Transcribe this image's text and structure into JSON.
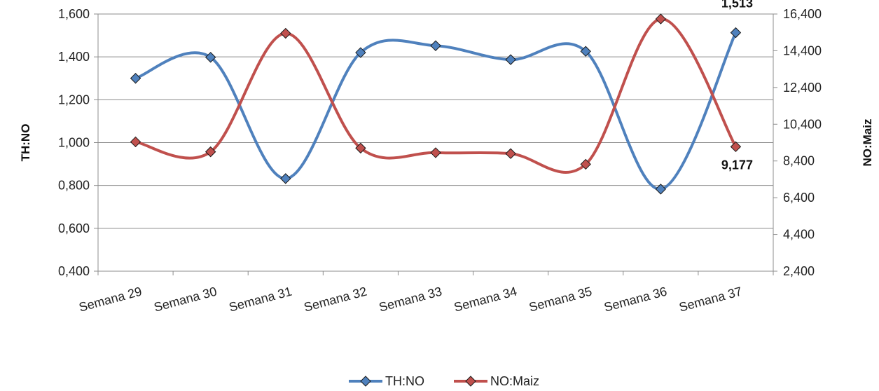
{
  "chart_data": {
    "type": "line",
    "categories": [
      "Semana 29",
      "Semana 30",
      "Semana 31",
      "Semana 32",
      "Semana 33",
      "Semana 34",
      "Semana 35",
      "Semana 36",
      "Semana 37"
    ],
    "series": [
      {
        "name": "TH:NO",
        "axis": "left",
        "color": "#4f81bd",
        "marker_fill": "#4f81bd",
        "values": [
          1.3,
          1.398,
          0.832,
          1.42,
          1.452,
          1.387,
          1.426,
          0.783,
          1.513
        ]
      },
      {
        "name": "NO:Maiz",
        "axis": "right",
        "color": "#c0504d",
        "marker_fill": "#c0504d",
        "values": [
          9440,
          8900,
          15350,
          9100,
          8850,
          8800,
          8220,
          16130,
          9177
        ]
      }
    ],
    "y_left": {
      "label": "TH:NO",
      "min": 0.4,
      "max": 1.6,
      "ticks": [
        "0,400",
        "0,600",
        "0,800",
        "1,000",
        "1,200",
        "1,400",
        "1,600"
      ]
    },
    "y_right": {
      "label": "NO:Maiz",
      "min": 2400,
      "max": 16400,
      "ticks": [
        "2,400",
        "4,400",
        "6,400",
        "8,400",
        "10,400",
        "12,400",
        "14,400",
        "16,400"
      ]
    },
    "data_labels": [
      {
        "series": "TH:NO",
        "index": 8,
        "text": "1,513"
      },
      {
        "series": "NO:Maiz",
        "index": 8,
        "text": "9,177"
      }
    ],
    "grid": true,
    "smooth": true,
    "legend_position": "bottom",
    "legend": [
      {
        "name": "TH:NO",
        "color": "#4f81bd"
      },
      {
        "name": "NO:Maiz",
        "color": "#c0504d"
      }
    ]
  }
}
